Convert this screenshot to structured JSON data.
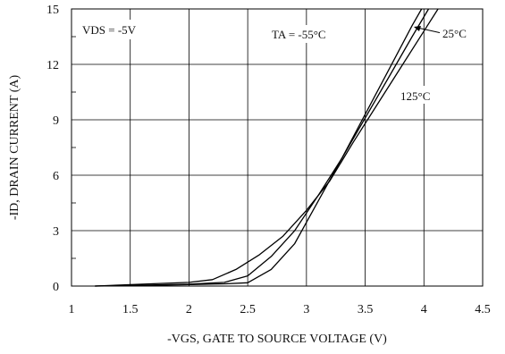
{
  "chart_data": {
    "type": "line",
    "title": "",
    "xlabel": "-VGS, GATE TO SOURCE VOLTAGE (V)",
    "ylabel": "-ID, DRAIN CURRENT (A)",
    "xlim": [
      1,
      4.5
    ],
    "ylim": [
      0,
      15
    ],
    "x_ticks": [
      1,
      1.5,
      2,
      2.5,
      3,
      3.5,
      4,
      4.5
    ],
    "y_ticks": [
      0,
      3,
      6,
      9,
      12,
      15
    ],
    "x_tick_labels": [
      "1",
      "1.5",
      "2",
      "2.5",
      "3",
      "3.5",
      "4",
      "4.5"
    ],
    "y_tick_labels": [
      "0",
      "3",
      "6",
      "9",
      "12",
      "15"
    ],
    "grid": true,
    "annotations": {
      "vds": "VDS = -5V",
      "ta": "TA = -55°C",
      "t25": "25°C",
      "t125": "125°C"
    },
    "series": [
      {
        "name": "TA = -55°C",
        "x": [
          1.2,
          1.6,
          2.0,
          2.3,
          2.5,
          2.7,
          2.9,
          3.1,
          3.3,
          3.5,
          3.7,
          3.9,
          3.98
        ],
        "y": [
          0.0,
          0.03,
          0.08,
          0.12,
          0.18,
          0.9,
          2.3,
          4.6,
          6.9,
          9.3,
          11.7,
          14.1,
          15.0
        ]
      },
      {
        "name": "25°C",
        "x": [
          1.2,
          1.6,
          2.0,
          2.3,
          2.5,
          2.7,
          2.9,
          3.1,
          3.3,
          3.5,
          3.7,
          3.9,
          4.04
        ],
        "y": [
          0.0,
          0.05,
          0.1,
          0.2,
          0.55,
          1.6,
          3.0,
          4.9,
          6.9,
          9.1,
          11.3,
          13.5,
          15.0
        ]
      },
      {
        "name": "125°C",
        "x": [
          1.2,
          1.6,
          2.0,
          2.2,
          2.4,
          2.6,
          2.8,
          3.0,
          3.2,
          3.4,
          3.6,
          3.8,
          4.0,
          4.12
        ],
        "y": [
          0.0,
          0.1,
          0.2,
          0.35,
          0.9,
          1.7,
          2.7,
          4.1,
          5.7,
          7.8,
          9.8,
          11.8,
          13.8,
          15.0
        ]
      }
    ]
  }
}
